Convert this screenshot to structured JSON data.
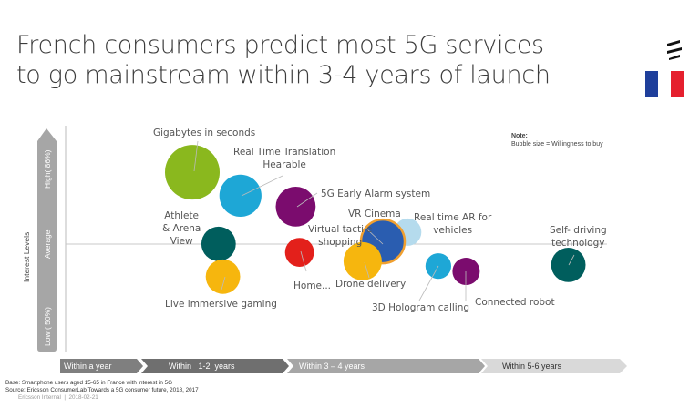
{
  "header": {
    "title_line1": "French consumers predict most 5G services",
    "title_line2": "to go mainstream within 3-4 years of launch",
    "logo_icon": "ericsson-logo",
    "flag_icon": "france-flag",
    "flag_colors": [
      "#1f3f9b",
      "#ffffff",
      "#e5202e"
    ]
  },
  "note": {
    "label": "Note:",
    "text": "Bubble size = Willingness to buy"
  },
  "footer": {
    "base": "Base: Smartphone users aged 15-65 in France with interest in 5G",
    "source": "Source: Ericsson ConsumerLab Towards a 5G consumer future, 2018, 2017",
    "internal": "Ericsson Internal  |  2018-02-21"
  },
  "chart_data": {
    "type": "scatter",
    "subtype": "bubble",
    "title": "",
    "ylabel": "Interest Levels",
    "y_ticks": [
      "Low ( 50%)",
      "Average",
      "High( 86%)"
    ],
    "ylim": [
      45,
      90
    ],
    "x_categories": [
      "Within a year",
      "Within   1-2  years",
      "Within 3 – 4 years",
      "Within 5-6 years"
    ],
    "x_unit": "years after launch",
    "xlim": [
      0,
      6
    ],
    "size_meaning": "Willingness to buy (relative)",
    "grid": false,
    "bubbles": [
      {
        "label": "Gigabytes in seconds",
        "x": 1.35,
        "y": 86.2,
        "size": 1.0,
        "color": "#8ab81e"
      },
      {
        "label": "Real Time Translation",
        "label2": "Hearable",
        "x": 1.68,
        "y": 80.4,
        "size": 0.77,
        "color": "#1ea7d6"
      },
      {
        "label": "5G Early Alarm system",
        "x": 2.09,
        "y": 77.7,
        "size": 0.73,
        "color": "#7b0c6e"
      },
      {
        "label": "Athlete",
        "label2": "& Arena",
        "label3": "View",
        "x": 1.53,
        "y": 68.5,
        "size": 0.63,
        "color": "#005e5d"
      },
      {
        "label": "Live immersive gaming",
        "x": 1.56,
        "y": 60.4,
        "size": 0.63,
        "color": "#f6b60e"
      },
      {
        "label": "Home...",
        "x": 2.13,
        "y": 66.4,
        "size": 0.53,
        "color": "#e3201b"
      },
      {
        "label": "Real time AR for",
        "label2": "vehicles",
        "x": 3.26,
        "y": 71.4,
        "size": 0.5,
        "color": "#b5dbed"
      },
      {
        "label": "VR Cinema",
        "x": 3.0,
        "y": 69.1,
        "size": 0.8,
        "color": "#2a5db0",
        "border": "#f0a030"
      },
      {
        "label": "Virtual tactile",
        "label2": "shopping",
        "x": 2.79,
        "y": 64.2,
        "size": 0.7,
        "color": "#f6b60e"
      },
      {
        "label": "3D Hologram calling",
        "x": 3.58,
        "y": 63.0,
        "size": 0.47,
        "color": "#1ea7d6"
      },
      {
        "label": "Connected robot",
        "x": 3.87,
        "y": 61.7,
        "size": 0.5,
        "color": "#7b0c6e"
      },
      {
        "label": "Self- driving",
        "label2": "technology",
        "x": 5.21,
        "y": 63.3,
        "size": 0.63,
        "color": "#005e5d"
      }
    ],
    "drone_label": "Drone delivery",
    "axis_colors": {
      "arrow": "#a6a6a6",
      "seg1": "#7f7f7f",
      "seg2": "#6f6f6f",
      "seg3": "#a6a6a6",
      "seg4": "#d9d9d9"
    }
  }
}
